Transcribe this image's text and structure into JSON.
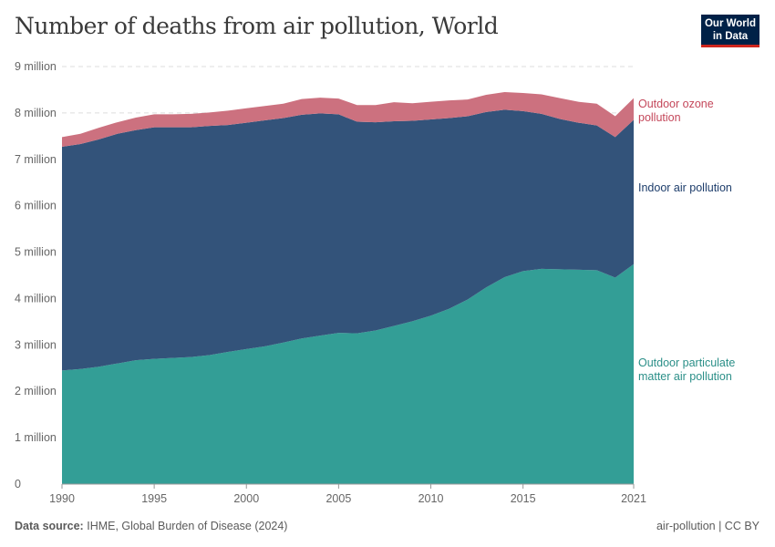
{
  "title": "Number of deaths from air pollution, World",
  "logo": "Our World in Data",
  "footer": {
    "source_label": "Data source:",
    "source": "IHME, Global Burden of Disease (2024)",
    "right": "air-pollution | CC BY"
  },
  "chart_data": {
    "type": "area",
    "stacked": true,
    "title": "Number of deaths from air pollution, World",
    "xlim": [
      1990,
      2021
    ],
    "ylim": [
      0,
      9000000
    ],
    "yticks": [
      {
        "v": 0,
        "label": "0"
      },
      {
        "v": 1000000,
        "label": "1 million"
      },
      {
        "v": 2000000,
        "label": "2 million"
      },
      {
        "v": 3000000,
        "label": "3 million"
      },
      {
        "v": 4000000,
        "label": "4 million"
      },
      {
        "v": 5000000,
        "label": "5 million"
      },
      {
        "v": 6000000,
        "label": "6 million"
      },
      {
        "v": 7000000,
        "label": "7 million"
      },
      {
        "v": 8000000,
        "label": "8 million"
      },
      {
        "v": 9000000,
        "label": "9 million"
      }
    ],
    "xticks": [
      "1990",
      "1995",
      "2000",
      "2005",
      "2010",
      "2015",
      "2021"
    ],
    "grid": true,
    "legend": "inline-right",
    "x": [
      1990,
      1991,
      1992,
      1993,
      1994,
      1995,
      1996,
      1997,
      1998,
      1999,
      2000,
      2001,
      2002,
      2003,
      2004,
      2005,
      2006,
      2007,
      2008,
      2009,
      2010,
      2011,
      2012,
      2013,
      2014,
      2015,
      2016,
      2017,
      2018,
      2019,
      2020,
      2021
    ],
    "series": [
      {
        "name": "Outdoor particulate matter air pollution",
        "color": "#339e96",
        "values": [
          2450000,
          2480000,
          2530000,
          2600000,
          2670000,
          2700000,
          2720000,
          2740000,
          2780000,
          2850000,
          2910000,
          2970000,
          3050000,
          3140000,
          3200000,
          3260000,
          3250000,
          3310000,
          3410000,
          3510000,
          3630000,
          3780000,
          3980000,
          4240000,
          4460000,
          4590000,
          4640000,
          4630000,
          4620000,
          4610000,
          4450000,
          4740000
        ]
      },
      {
        "name": "Indoor air pollution",
        "color": "#33537a",
        "values": [
          4820000,
          4850000,
          4900000,
          4950000,
          4960000,
          4990000,
          4970000,
          4950000,
          4940000,
          4890000,
          4880000,
          4870000,
          4840000,
          4820000,
          4790000,
          4710000,
          4560000,
          4490000,
          4410000,
          4320000,
          4230000,
          4110000,
          3950000,
          3780000,
          3610000,
          3450000,
          3340000,
          3240000,
          3170000,
          3120000,
          3030000,
          3110000
        ]
      },
      {
        "name": "Outdoor ozone pollution",
        "color": "#cc717f",
        "values": [
          210000,
          220000,
          250000,
          250000,
          270000,
          280000,
          280000,
          290000,
          290000,
          310000,
          310000,
          310000,
          310000,
          340000,
          340000,
          340000,
          360000,
          370000,
          410000,
          380000,
          380000,
          380000,
          360000,
          370000,
          380000,
          390000,
          420000,
          450000,
          450000,
          470000,
          450000,
          470000
        ]
      }
    ],
    "label_colors": [
      "#2b8f88",
      "#1d3d6b",
      "#c4475a"
    ]
  }
}
